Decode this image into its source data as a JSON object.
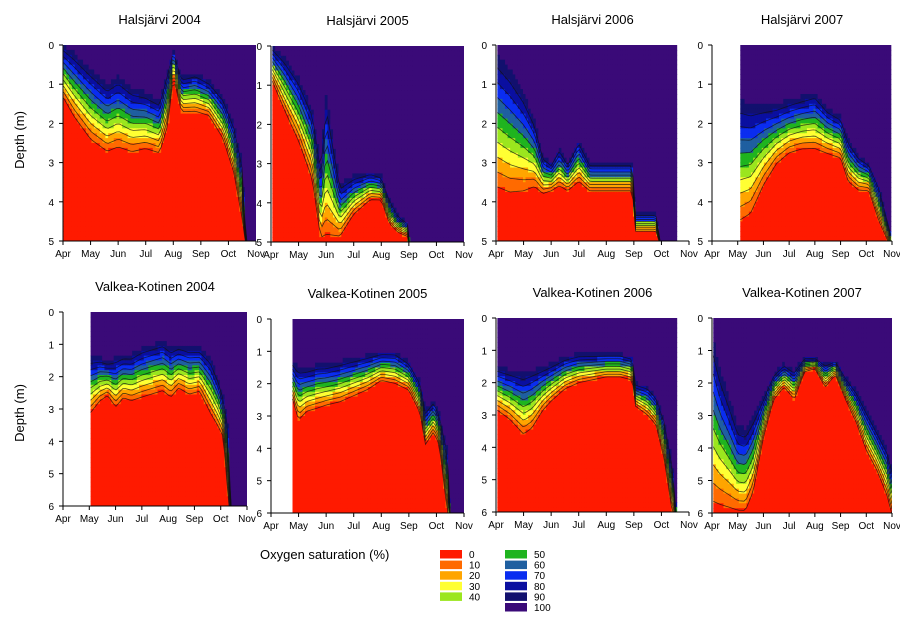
{
  "figure": {
    "ylabel": "Depth (m)",
    "legend_title": "Oxygen saturation (%)"
  },
  "colors": {
    "scale": [
      {
        "label": "0",
        "value": 0,
        "color": "#ff1a00"
      },
      {
        "label": "10",
        "value": 10,
        "color": "#ff6a00"
      },
      {
        "label": "20",
        "value": 20,
        "color": "#ffa500"
      },
      {
        "label": "30",
        "value": 30,
        "color": "#ffff33"
      },
      {
        "label": "40",
        "value": 40,
        "color": "#9be61e"
      },
      {
        "label": "50",
        "value": 50,
        "color": "#1fb41f"
      },
      {
        "label": "60",
        "value": 60,
        "color": "#1f5fa0"
      },
      {
        "label": "70",
        "value": 70,
        "color": "#0a2df0"
      },
      {
        "label": "80",
        "value": 80,
        "color": "#0a0fa0"
      },
      {
        "label": "90",
        "value": 90,
        "color": "#12106e"
      },
      {
        "label": "100",
        "value": 100,
        "color": "#3a0a78"
      }
    ],
    "contour_line": "#111111"
  },
  "chart_data": [
    {
      "type": "heatmap",
      "title": "Halsjärvi 2004",
      "ylabel": "Depth (m)",
      "ylim": [
        0,
        5
      ],
      "yticks": [
        "0",
        "1",
        "2",
        "3",
        "4",
        "5"
      ],
      "xticks": [
        "Apr",
        "May",
        "Jun",
        "Jul",
        "Aug",
        "Sep",
        "Oct",
        "Nov"
      ],
      "data_months": [
        4.02,
        11.1
      ],
      "profiles": [
        {
          "m": 4.02,
          "d0": 1.5,
          "d100": 0
        },
        {
          "m": 4.4,
          "d0": 2.0,
          "d100": 0.2
        },
        {
          "m": 5.0,
          "d0": 2.6,
          "d100": 0.6
        },
        {
          "m": 5.6,
          "d0": 2.9,
          "d100": 1.0
        },
        {
          "m": 6.0,
          "d0": 2.8,
          "d100": 0.8
        },
        {
          "m": 6.5,
          "d0": 2.9,
          "d100": 1.1
        },
        {
          "m": 7.0,
          "d0": 2.8,
          "d100": 1.2
        },
        {
          "m": 7.5,
          "d0": 2.9,
          "d100": 1.4
        },
        {
          "m": 7.8,
          "d0": 2.2,
          "d100": 0.6
        },
        {
          "m": 8.0,
          "d0": 0.9,
          "d100": 0.1
        },
        {
          "m": 8.3,
          "d0": 1.8,
          "d100": 0.8
        },
        {
          "m": 8.8,
          "d0": 1.8,
          "d100": 0.7
        },
        {
          "m": 9.3,
          "d0": 1.9,
          "d100": 0.9
        },
        {
          "m": 9.8,
          "d0": 2.5,
          "d100": 1.3
        },
        {
          "m": 10.2,
          "d0": 3.4,
          "d100": 2.0
        },
        {
          "m": 10.5,
          "d0": 4.6,
          "d100": 3.0
        },
        {
          "m": 10.65,
          "d0": 5.2,
          "d100": 5.2
        },
        {
          "m": 11.1,
          "d0": 5.2,
          "d100": 5.2
        }
      ]
    },
    {
      "type": "heatmap",
      "title": "Halsjärvi 2005",
      "ylabel": "",
      "ylim": [
        0,
        5
      ],
      "yticks": [
        "0",
        "1",
        "2",
        "3",
        "4",
        "5"
      ],
      "xticks": [
        "Apr",
        "May",
        "Jun",
        "Jul",
        "Aug",
        "Sep",
        "Oct",
        "Nov"
      ],
      "data_months": [
        4.05,
        11.05
      ],
      "profiles": [
        {
          "m": 4.05,
          "d0": 1.0,
          "d100": 0
        },
        {
          "m": 4.5,
          "d0": 1.8,
          "d100": 0.3
        },
        {
          "m": 5.0,
          "d0": 2.6,
          "d100": 0.8
        },
        {
          "m": 5.5,
          "d0": 3.6,
          "d100": 1.6
        },
        {
          "m": 5.8,
          "d0": 5.1,
          "d100": 3.0
        },
        {
          "m": 6.0,
          "d0": 5.2,
          "d100": 1.2
        },
        {
          "m": 6.5,
          "d0": 5.0,
          "d100": 3.5
        },
        {
          "m": 7.0,
          "d0": 4.4,
          "d100": 3.3
        },
        {
          "m": 7.6,
          "d0": 4.0,
          "d100": 3.2
        },
        {
          "m": 8.0,
          "d0": 4.0,
          "d100": 3.3
        },
        {
          "m": 8.3,
          "d0": 4.6,
          "d100": 3.9
        },
        {
          "m": 8.6,
          "d0": 4.8,
          "d100": 4.3
        },
        {
          "m": 8.95,
          "d0": 4.9,
          "d100": 4.5
        },
        {
          "m": 9.05,
          "d0": 5.2,
          "d100": 5.2
        },
        {
          "m": 11.05,
          "d0": 5.2,
          "d100": 5.2
        }
      ]
    },
    {
      "type": "heatmap",
      "title": "Halsjärvi 2006",
      "ylabel": "",
      "ylim": [
        0,
        5
      ],
      "yticks": [
        "0",
        "1",
        "2",
        "3",
        "4",
        "5"
      ],
      "xticks": [
        "Apr",
        "May",
        "Jun",
        "Jul",
        "Aug",
        "Sep",
        "Oct",
        "Nov"
      ],
      "data_months": [
        4.05,
        10.55
      ],
      "profiles": [
        {
          "m": 4.05,
          "d0": 4.0,
          "d100": 0.2
        },
        {
          "m": 4.5,
          "d0": 4.1,
          "d100": 0.6
        },
        {
          "m": 5.0,
          "d0": 4.0,
          "d100": 1.2
        },
        {
          "m": 5.4,
          "d0": 3.8,
          "d100": 1.9
        },
        {
          "m": 5.7,
          "d0": 3.9,
          "d100": 2.8
        },
        {
          "m": 6.0,
          "d0": 3.8,
          "d100": 3.0
        },
        {
          "m": 6.3,
          "d0": 3.7,
          "d100": 2.6
        },
        {
          "m": 6.6,
          "d0": 3.8,
          "d100": 3.0
        },
        {
          "m": 7.0,
          "d0": 3.6,
          "d100": 2.4
        },
        {
          "m": 7.4,
          "d0": 3.8,
          "d100": 3.0
        },
        {
          "m": 8.0,
          "d0": 3.8,
          "d100": 3.0
        },
        {
          "m": 8.6,
          "d0": 3.8,
          "d100": 3.0
        },
        {
          "m": 8.95,
          "d0": 3.8,
          "d100": 3.0
        },
        {
          "m": 9.05,
          "d0": 4.8,
          "d100": 4.3
        },
        {
          "m": 9.8,
          "d0": 4.8,
          "d100": 4.3
        },
        {
          "m": 10.0,
          "d0": 5.2,
          "d100": 5.2
        },
        {
          "m": 10.55,
          "d0": 5.2,
          "d100": 5.2
        }
      ]
    },
    {
      "type": "heatmap",
      "title": "Halsjärvi 2007",
      "ylabel": "",
      "ylim": [
        0,
        5
      ],
      "yticks": [
        "0",
        "1",
        "2",
        "3",
        "4",
        "5"
      ],
      "xticks": [
        "Apr",
        "May",
        "Jun",
        "Jul",
        "Aug",
        "Sep",
        "Oct",
        "Nov"
      ],
      "data_months": [
        5.1,
        10.95
      ],
      "profiles": [
        {
          "m": 5.1,
          "d0": 4.8,
          "d100": 1.4
        },
        {
          "m": 5.5,
          "d0": 4.6,
          "d100": 1.5
        },
        {
          "m": 6.0,
          "d0": 3.8,
          "d100": 1.5
        },
        {
          "m": 6.5,
          "d0": 3.2,
          "d100": 1.5
        },
        {
          "m": 7.0,
          "d0": 2.9,
          "d100": 1.4
        },
        {
          "m": 7.5,
          "d0": 2.8,
          "d100": 1.3
        },
        {
          "m": 8.0,
          "d0": 2.8,
          "d100": 1.2
        },
        {
          "m": 8.5,
          "d0": 2.9,
          "d100": 1.6
        },
        {
          "m": 9.0,
          "d0": 3.0,
          "d100": 1.8
        },
        {
          "m": 9.3,
          "d0": 3.6,
          "d100": 2.4
        },
        {
          "m": 9.7,
          "d0": 3.8,
          "d100": 2.8
        },
        {
          "m": 10.1,
          "d0": 3.8,
          "d100": 3.0
        },
        {
          "m": 10.5,
          "d0": 4.6,
          "d100": 3.6
        },
        {
          "m": 10.95,
          "d0": 5.2,
          "d100": 4.8
        }
      ]
    },
    {
      "type": "heatmap",
      "title": "Valkea-Kotinen 2004",
      "ylabel": "Depth (m)",
      "ylim": [
        0,
        6
      ],
      "yticks": [
        "0",
        "1",
        "2",
        "3",
        "4",
        "5",
        "6"
      ],
      "xticks": [
        "Apr",
        "May",
        "Jun",
        "Jul",
        "Aug",
        "Sep",
        "Oct",
        "Nov"
      ],
      "data_months": [
        5.05,
        11.2
      ],
      "profiles": [
        {
          "m": 5.05,
          "d0": 3.3,
          "d100": 1.4
        },
        {
          "m": 5.4,
          "d0": 2.9,
          "d100": 1.4
        },
        {
          "m": 5.7,
          "d0": 2.7,
          "d100": 1.5
        },
        {
          "m": 6.0,
          "d0": 3.1,
          "d100": 1.4
        },
        {
          "m": 6.3,
          "d0": 2.8,
          "d100": 1.3
        },
        {
          "m": 6.6,
          "d0": 2.9,
          "d100": 1.3
        },
        {
          "m": 7.0,
          "d0": 2.8,
          "d100": 1.1
        },
        {
          "m": 7.4,
          "d0": 2.7,
          "d100": 1.0
        },
        {
          "m": 7.8,
          "d0": 2.6,
          "d100": 0.9
        },
        {
          "m": 8.1,
          "d0": 2.8,
          "d100": 1.1
        },
        {
          "m": 8.4,
          "d0": 2.5,
          "d100": 1.0
        },
        {
          "m": 8.8,
          "d0": 2.7,
          "d100": 1.1
        },
        {
          "m": 9.2,
          "d0": 2.6,
          "d100": 1.1
        },
        {
          "m": 9.6,
          "d0": 3.3,
          "d100": 1.4
        },
        {
          "m": 9.9,
          "d0": 3.7,
          "d100": 2.0
        },
        {
          "m": 10.1,
          "d0": 4.0,
          "d100": 2.6
        },
        {
          "m": 10.3,
          "d0": 6.2,
          "d100": 3.5
        },
        {
          "m": 10.35,
          "d0": 6.2,
          "d100": 6.2
        },
        {
          "m": 11.2,
          "d0": 6.2,
          "d100": 6.2
        }
      ]
    },
    {
      "type": "heatmap",
      "title": "Valkea-Kotinen 2005",
      "ylabel": "",
      "ylim": [
        0,
        6
      ],
      "yticks": [
        "0",
        "1",
        "2",
        "3",
        "4",
        "5",
        "6"
      ],
      "xticks": [
        "Apr",
        "May",
        "Jun",
        "Jul",
        "Aug",
        "Sep",
        "Oct",
        "Nov"
      ],
      "data_months": [
        4.78,
        11.15
      ],
      "profiles": [
        {
          "m": 4.78,
          "d0": 2.6,
          "d100": 1.3
        },
        {
          "m": 5.0,
          "d0": 3.3,
          "d100": 1.5
        },
        {
          "m": 5.3,
          "d0": 3.0,
          "d100": 1.5
        },
        {
          "m": 5.7,
          "d0": 2.9,
          "d100": 1.4
        },
        {
          "m": 6.0,
          "d0": 2.8,
          "d100": 1.4
        },
        {
          "m": 6.5,
          "d0": 2.7,
          "d100": 1.3
        },
        {
          "m": 7.0,
          "d0": 2.5,
          "d100": 1.2
        },
        {
          "m": 7.5,
          "d0": 2.3,
          "d100": 1.1
        },
        {
          "m": 8.0,
          "d0": 2.0,
          "d100": 1.0
        },
        {
          "m": 8.5,
          "d0": 2.1,
          "d100": 1.0
        },
        {
          "m": 9.0,
          "d0": 2.3,
          "d100": 1.3
        },
        {
          "m": 9.4,
          "d0": 3.0,
          "d100": 1.9
        },
        {
          "m": 9.6,
          "d0": 4.0,
          "d100": 2.8
        },
        {
          "m": 9.9,
          "d0": 3.6,
          "d100": 2.5
        },
        {
          "m": 10.1,
          "d0": 4.0,
          "d100": 2.9
        },
        {
          "m": 10.4,
          "d0": 6.2,
          "d100": 4.0
        },
        {
          "m": 10.5,
          "d0": 6.2,
          "d100": 6.2
        },
        {
          "m": 11.15,
          "d0": 6.2,
          "d100": 6.2
        }
      ]
    },
    {
      "type": "heatmap",
      "title": "Valkea-Kotinen 2006",
      "ylabel": "",
      "ylim": [
        0,
        6
      ],
      "yticks": [
        "0",
        "1",
        "2",
        "3",
        "4",
        "5",
        "6"
      ],
      "xticks": [
        "Apr",
        "May",
        "Jun",
        "Jul",
        "Aug",
        "Sep",
        "Oct",
        "Nov"
      ],
      "data_months": [
        4.05,
        10.55
      ],
      "profiles": [
        {
          "m": 4.05,
          "d0": 3.0,
          "d100": 1.5
        },
        {
          "m": 4.5,
          "d0": 3.3,
          "d100": 1.6
        },
        {
          "m": 5.0,
          "d0": 3.8,
          "d100": 1.7
        },
        {
          "m": 5.3,
          "d0": 3.6,
          "d100": 1.6
        },
        {
          "m": 5.7,
          "d0": 3.0,
          "d100": 1.5
        },
        {
          "m": 6.0,
          "d0": 2.7,
          "d100": 1.4
        },
        {
          "m": 6.5,
          "d0": 2.3,
          "d100": 1.2
        },
        {
          "m": 7.0,
          "d0": 2.1,
          "d100": 1.1
        },
        {
          "m": 7.5,
          "d0": 2.0,
          "d100": 1.1
        },
        {
          "m": 8.0,
          "d0": 1.9,
          "d100": 1.1
        },
        {
          "m": 8.5,
          "d0": 1.9,
          "d100": 1.1
        },
        {
          "m": 8.95,
          "d0": 2.0,
          "d100": 1.2
        },
        {
          "m": 9.05,
          "d0": 2.8,
          "d100": 2.0
        },
        {
          "m": 9.5,
          "d0": 3.1,
          "d100": 2.1
        },
        {
          "m": 9.8,
          "d0": 3.4,
          "d100": 2.4
        },
        {
          "m": 10.1,
          "d0": 4.5,
          "d100": 3.1
        },
        {
          "m": 10.4,
          "d0": 6.2,
          "d100": 4.5
        },
        {
          "m": 10.55,
          "d0": 6.2,
          "d100": 6.2
        }
      ]
    },
    {
      "type": "heatmap",
      "title": "Valkea-Kotinen 2007",
      "ylabel": "",
      "ylim": [
        0,
        6
      ],
      "yticks": [
        "0",
        "1",
        "2",
        "3",
        "4",
        "5",
        "6"
      ],
      "xticks": [
        "Apr",
        "May",
        "Jun",
        "Jul",
        "Aug",
        "Sep",
        "Oct",
        "Nov"
      ],
      "data_months": [
        4.05,
        11.0
      ],
      "profiles": [
        {
          "m": 4.05,
          "d0": 6.2,
          "d100": 0.6
        },
        {
          "m": 4.3,
          "d0": 6.2,
          "d100": 1.5
        },
        {
          "m": 4.7,
          "d0": 6.2,
          "d100": 2.5
        },
        {
          "m": 5.0,
          "d0": 6.2,
          "d100": 3.3
        },
        {
          "m": 5.3,
          "d0": 6.2,
          "d100": 3.4
        },
        {
          "m": 5.6,
          "d0": 5.6,
          "d100": 3.0
        },
        {
          "m": 6.0,
          "d0": 3.8,
          "d100": 2.4
        },
        {
          "m": 6.4,
          "d0": 2.6,
          "d100": 1.7
        },
        {
          "m": 6.8,
          "d0": 2.2,
          "d100": 1.4
        },
        {
          "m": 7.2,
          "d0": 2.6,
          "d100": 1.6
        },
        {
          "m": 7.6,
          "d0": 1.7,
          "d100": 1.2
        },
        {
          "m": 8.0,
          "d0": 1.6,
          "d100": 1.2
        },
        {
          "m": 8.4,
          "d0": 2.2,
          "d100": 1.4
        },
        {
          "m": 8.8,
          "d0": 1.8,
          "d100": 1.3
        },
        {
          "m": 9.2,
          "d0": 2.6,
          "d100": 1.8
        },
        {
          "m": 9.6,
          "d0": 3.3,
          "d100": 2.2
        },
        {
          "m": 10.0,
          "d0": 4.2,
          "d100": 2.8
        },
        {
          "m": 10.4,
          "d0": 4.8,
          "d100": 3.4
        },
        {
          "m": 10.8,
          "d0": 5.6,
          "d100": 4.0
        },
        {
          "m": 11.0,
          "d0": 6.2,
          "d100": 4.6
        }
      ]
    }
  ]
}
